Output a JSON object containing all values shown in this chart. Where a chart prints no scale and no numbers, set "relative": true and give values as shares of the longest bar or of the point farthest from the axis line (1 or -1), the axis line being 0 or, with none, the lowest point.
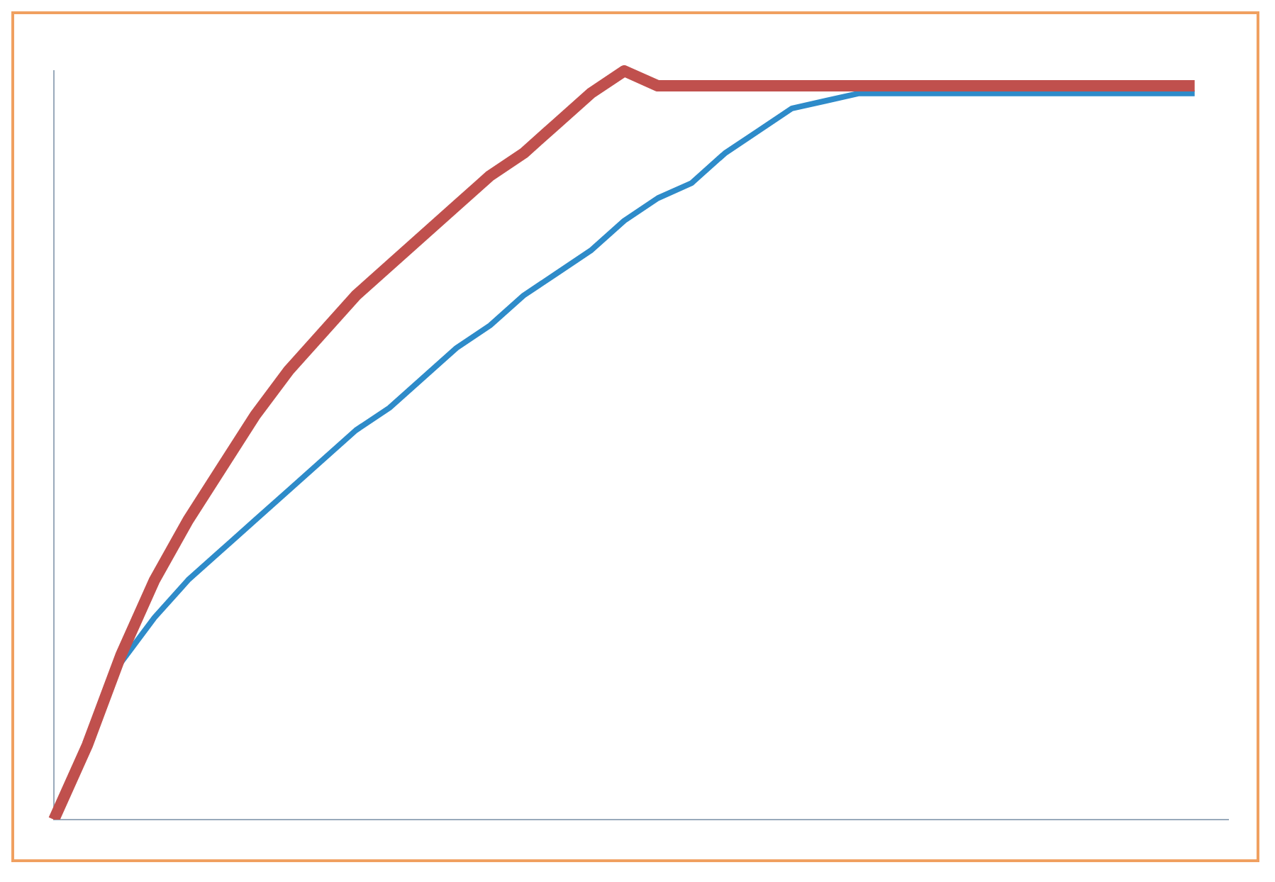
{
  "chart_data": {
    "type": "line",
    "relative": true,
    "categories": [
      null,
      null,
      null,
      null,
      null,
      null,
      null,
      null,
      null,
      null,
      null,
      null,
      null,
      null,
      null,
      null,
      null,
      null,
      null,
      null,
      null,
      null,
      null,
      null,
      null,
      null,
      null,
      null,
      null,
      null,
      null,
      null,
      null,
      null,
      null,
      null
    ],
    "series": [
      {
        "color": "#c0504d",
        "values": [
          0,
          0.1,
          0.22,
          0.32,
          0.4,
          0.47,
          0.54,
          0.6,
          0.65,
          0.7,
          0.74,
          0.78,
          0.82,
          0.86,
          0.89,
          0.93,
          0.97,
          1,
          0.98,
          0.98,
          0.98,
          0.98,
          0.98,
          0.98,
          0.98,
          0.98,
          0.98,
          0.98,
          0.98,
          0.98,
          0.98,
          0.98,
          0.98,
          0.98,
          0.98,
          null
        ]
      },
      {
        "color": "#2e8bc9",
        "values": [
          null,
          null,
          0.21,
          0.27,
          0.32,
          0.36,
          0.4,
          0.44,
          0.48,
          0.52,
          0.55,
          0.59,
          0.63,
          0.66,
          0.7,
          0.73,
          0.76,
          0.8,
          0.83,
          0.85,
          0.89,
          0.92,
          0.95,
          0.96,
          0.97,
          0.97,
          0.97,
          0.97,
          0.97,
          0.97,
          0.97,
          0.97,
          0.97,
          0.97,
          0.97,
          null
        ]
      }
    ]
  }
}
